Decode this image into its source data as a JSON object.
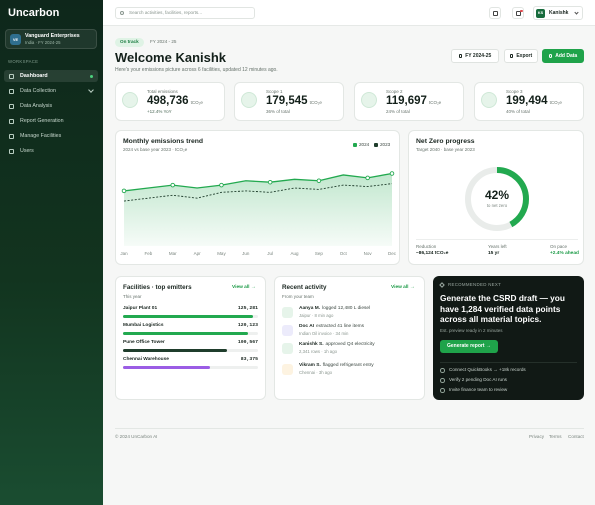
{
  "sidebar": {
    "brand": "Uncarbon",
    "org": {
      "initials": "VE",
      "name": "Vanguard Enterprises",
      "meta": "India · FY 2024-25"
    },
    "section": "WORKSPACE",
    "nav": [
      "Dashboard",
      "Data Collection",
      "Data Analysis",
      "Report Generation",
      "Manage Facilities",
      "Users"
    ]
  },
  "topbar": {
    "search_placeholder": "Search activities, facilities, reports...",
    "user_initials": "KS",
    "user_name": "Kanishk"
  },
  "header": {
    "status": "On track",
    "period": "FY 2024 - 25",
    "title": "Welcome Kanishk",
    "subtitle": "Here's your emissions picture across 6 facilities, updated 12 minutes ago.",
    "buttons": [
      "FY 2024-25",
      "Export",
      "Add Data"
    ]
  },
  "kpis": [
    {
      "label": "Total emissions",
      "value": "498,736",
      "unit": "tCO₂e",
      "note": "+12.4% YoY"
    },
    {
      "label": "Scope 1",
      "value": "179,545",
      "unit": "tCO₂e",
      "note": "36% of total"
    },
    {
      "label": "Scope 2",
      "value": "119,697",
      "unit": "tCO₂e",
      "note": "24% of total"
    },
    {
      "label": "Scope 3",
      "value": "199,494",
      "unit": "tCO₂e",
      "note": "40% of total"
    }
  ],
  "chart_data": {
    "type": "line",
    "title": "Monthly emissions trend",
    "subtitle": "2024 vs base year 2023 · tCO₂e",
    "categories": [
      "Jan",
      "Feb",
      "Mar",
      "Apr",
      "May",
      "Jun",
      "Jul",
      "Aug",
      "Sep",
      "Oct",
      "Nov",
      "Dec"
    ],
    "series": [
      {
        "name": "2024",
        "color": "#22a94f",
        "values": [
          38,
          40,
          42,
          40,
          42,
          45,
          44,
          46,
          45,
          49,
          47,
          50
        ]
      },
      {
        "name": "2023",
        "color": "#1f3d2c",
        "values": [
          31,
          33,
          35,
          33,
          37,
          38,
          37,
          40,
          39,
          42,
          41,
          43
        ]
      }
    ],
    "ylim": [
      0,
      60
    ]
  },
  "net_zero": {
    "title": "Net Zero progress",
    "subtitle": "Target 2040 · base year 2023",
    "progress": {
      "value": 42,
      "label": "42%"
    },
    "progress_caption": "to net zero",
    "stats": [
      {
        "label": "Reduction",
        "value": "−86,124 tCO₂e"
      },
      {
        "label": "Years left",
        "value": "15 yr"
      },
      {
        "label": "On pace",
        "value": "+2.4% ahead"
      }
    ]
  },
  "facilities": {
    "title": "Facilities · top emitters",
    "subtitle": "This year",
    "link": "View all →",
    "xlim": [
      0,
      130000
    ],
    "rows": [
      {
        "name": "Jaipur Plant 01",
        "value": 125281,
        "value_label": "125,281",
        "color": "#22a94f"
      },
      {
        "name": "Mumbai Logistics",
        "value": 120123,
        "value_label": "120,123",
        "color": "#22a94f"
      },
      {
        "name": "Pune Office Tower",
        "value": 100567,
        "value_label": "100,567",
        "color": "#1f3d2c"
      },
      {
        "name": "Chennai Warehouse",
        "value": 83375,
        "value_label": "83,375",
        "color": "#9b5de5"
      }
    ]
  },
  "activity": {
    "title": "Recent activity",
    "subtitle": "From your team",
    "link": "View all →",
    "items": [
      {
        "actor": "Aanya M.",
        "action": "logged 12,480 L diesel",
        "meta": "Jaipur · 8 min ago"
      },
      {
        "actor": "Doc AI",
        "action": "extracted 41 line items",
        "meta": "Indian Oil invoice · 34 min"
      },
      {
        "actor": "Kanishk S.",
        "action": "approved Q4 electricity",
        "meta": "2,341 rows · 1h ago"
      },
      {
        "actor": "Vikram S.",
        "action": "flagged refrigerant entry",
        "meta": "Chennai · 3h ago"
      }
    ]
  },
  "recommendation": {
    "eyebrow": "RECOMMENDED NEXT",
    "headline": "Generate the CSRD draft — you have 1,284 verified data points across all material topics.",
    "note": "Est. preview ready in 2 minutes",
    "button": "Generate report →",
    "checklist": [
      "Connect QuickBooks → +18k records",
      "Verify 2 pending Doc AI runs",
      "Invite finance team to review"
    ]
  },
  "footer": {
    "copyright": "© 2024 UnCarbon AI",
    "links": [
      "Privacy",
      "Terms",
      "Contact"
    ]
  }
}
